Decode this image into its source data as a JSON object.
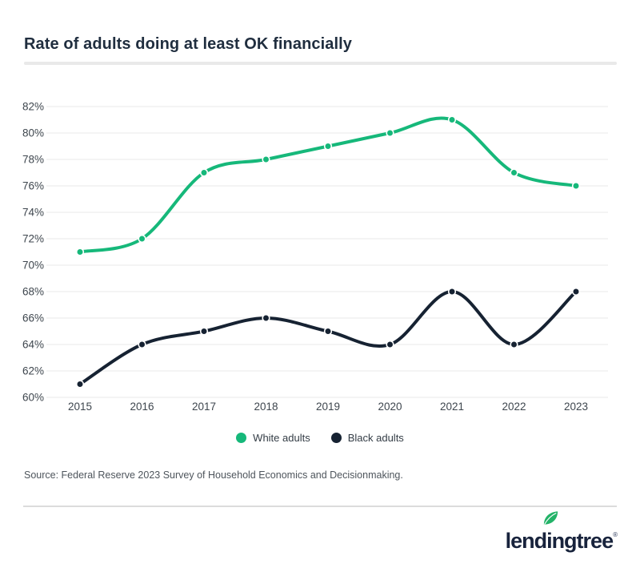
{
  "header": {
    "title": "Rate of adults doing at least OK financially"
  },
  "chart_data": {
    "type": "line",
    "title": "Rate of adults doing at least OK financially",
    "categories": [
      "2015",
      "2016",
      "2017",
      "2018",
      "2019",
      "2020",
      "2021",
      "2022",
      "2023"
    ],
    "series": [
      {
        "name": "White adults",
        "color": "#16b87a",
        "values": [
          71,
          72,
          77,
          78,
          79,
          80,
          81,
          77,
          76
        ]
      },
      {
        "name": "Black adults",
        "color": "#162232",
        "values": [
          61,
          64,
          65,
          66,
          65,
          64,
          68,
          64,
          68
        ]
      }
    ],
    "unit": "%",
    "ylim": [
      60,
      82
    ],
    "ytick_step": 2,
    "yticks": [
      "82%",
      "80%",
      "78%",
      "76%",
      "74%",
      "72%",
      "70%",
      "68%",
      "66%",
      "64%",
      "62%",
      "60%"
    ],
    "grid": "horizontal",
    "gridline_color": "#ededed",
    "legend_position": "bottom"
  },
  "footer": {
    "source": "Source: Federal Reserve 2023 Survey of Household Economics and Decisionmaking.",
    "logo_text": "lendingtree",
    "registered_mark": "®",
    "logo_color": "#18233c",
    "leaf_color": "#23b368"
  }
}
